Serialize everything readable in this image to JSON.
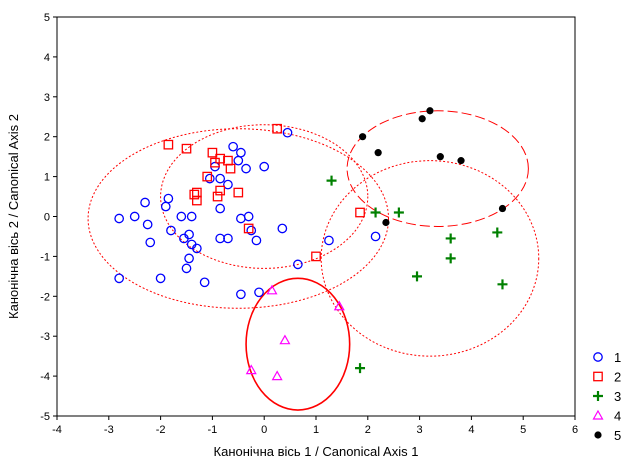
{
  "chart_data": {
    "type": "scatter",
    "xlabel": "Канонічна вісь 1 / Canonical Axis 1",
    "ylabel": "Канонічна вісь 2 / Canonical Axis 2",
    "xlim": [
      -4,
      6
    ],
    "ylim": [
      -5,
      5
    ],
    "xticks": [
      "-4",
      "-3",
      "-2",
      "-1",
      "0",
      "1",
      "2",
      "3",
      "4",
      "5",
      "6"
    ],
    "yticks": [
      "-5",
      "-4",
      "-3",
      "-2",
      "-1",
      "0",
      "1",
      "2",
      "3",
      "4",
      "5"
    ],
    "grid": false,
    "legend_position": "bottom-right",
    "series": [
      {
        "name": "1",
        "marker": "circle",
        "color": "#0000ff",
        "points": [
          [
            -2.8,
            -0.05
          ],
          [
            -2.8,
            -1.55
          ],
          [
            -2.5,
            0.0
          ],
          [
            -2.3,
            0.35
          ],
          [
            -2.25,
            -0.2
          ],
          [
            -2.2,
            -0.65
          ],
          [
            -2.0,
            -1.55
          ],
          [
            -1.9,
            0.25
          ],
          [
            -1.85,
            0.45
          ],
          [
            -1.8,
            -0.35
          ],
          [
            -1.6,
            0.0
          ],
          [
            -1.55,
            -0.55
          ],
          [
            -1.5,
            -1.3
          ],
          [
            -1.45,
            -1.05
          ],
          [
            -1.45,
            -0.45
          ],
          [
            -1.4,
            0.0
          ],
          [
            -1.4,
            -0.7
          ],
          [
            -1.3,
            -0.8
          ],
          [
            -1.15,
            -1.65
          ],
          [
            -1.05,
            0.95
          ],
          [
            -0.95,
            1.25
          ],
          [
            -0.85,
            0.2
          ],
          [
            -0.85,
            0.95
          ],
          [
            -0.85,
            -0.55
          ],
          [
            -0.7,
            0.8
          ],
          [
            -0.7,
            -0.55
          ],
          [
            -0.6,
            1.75
          ],
          [
            -0.5,
            1.4
          ],
          [
            -0.45,
            1.6
          ],
          [
            -0.45,
            -0.05
          ],
          [
            -0.45,
            -1.95
          ],
          [
            -0.35,
            1.2
          ],
          [
            -0.3,
            0.0
          ],
          [
            -0.25,
            -0.35
          ],
          [
            -0.15,
            -0.6
          ],
          [
            0.0,
            1.25
          ],
          [
            0.35,
            -0.3
          ],
          [
            0.45,
            2.1
          ],
          [
            0.65,
            -1.2
          ],
          [
            1.25,
            -0.6
          ],
          [
            2.15,
            -0.5
          ],
          [
            -0.1,
            -1.9
          ]
        ]
      },
      {
        "name": "2",
        "marker": "square",
        "color": "#ff0000",
        "points": [
          [
            -1.85,
            1.8
          ],
          [
            -1.5,
            1.7
          ],
          [
            -1.35,
            0.55
          ],
          [
            -1.3,
            0.4
          ],
          [
            -1.3,
            0.6
          ],
          [
            -1.1,
            1.0
          ],
          [
            -1.0,
            1.6
          ],
          [
            -0.95,
            1.35
          ],
          [
            -0.9,
            0.5
          ],
          [
            -0.85,
            1.45
          ],
          [
            -0.85,
            0.65
          ],
          [
            -0.7,
            1.4
          ],
          [
            -0.65,
            1.2
          ],
          [
            -0.5,
            0.6
          ],
          [
            -0.3,
            -0.3
          ],
          [
            0.25,
            2.2
          ],
          [
            1.0,
            -1.0
          ],
          [
            1.85,
            0.1
          ]
        ]
      },
      {
        "name": "3",
        "marker": "plus",
        "color": "#008000",
        "points": [
          [
            1.3,
            0.9
          ],
          [
            2.15,
            0.1
          ],
          [
            2.6,
            0.1
          ],
          [
            2.95,
            -1.5
          ],
          [
            3.6,
            -0.55
          ],
          [
            3.6,
            -1.05
          ],
          [
            4.5,
            -0.4
          ],
          [
            4.6,
            -1.7
          ],
          [
            1.85,
            -3.8
          ]
        ]
      },
      {
        "name": "4",
        "marker": "triangle",
        "color": "#ff00ff",
        "points": [
          [
            -0.25,
            -3.85
          ],
          [
            0.15,
            -1.85
          ],
          [
            0.25,
            -4.0
          ],
          [
            0.4,
            -3.1
          ],
          [
            1.45,
            -2.25
          ]
        ]
      },
      {
        "name": "5",
        "marker": "dot",
        "color": "#000000",
        "points": [
          [
            1.9,
            2.0
          ],
          [
            2.2,
            1.6
          ],
          [
            2.35,
            -0.15
          ],
          [
            3.05,
            2.45
          ],
          [
            3.2,
            2.65
          ],
          [
            3.4,
            1.5
          ],
          [
            3.8,
            1.4
          ],
          [
            4.6,
            0.2
          ]
        ]
      }
    ],
    "ellipses": [
      {
        "series": "1",
        "cx": -0.5,
        "cy": -0.05,
        "rx": 2.9,
        "ry": 2.25,
        "style": "dotted",
        "color": "#ff0000"
      },
      {
        "series": "2",
        "cx": 0.0,
        "cy": 0.5,
        "rx": 2.0,
        "ry": 1.8,
        "style": "dotted",
        "color": "#ff0000"
      },
      {
        "series": "3",
        "cx": 3.2,
        "cy": -1.05,
        "rx": 2.1,
        "ry": 2.45,
        "style": "dotted",
        "color": "#ff0000"
      },
      {
        "series": "4",
        "cx": 0.65,
        "cy": -3.2,
        "rx": 1.0,
        "ry": 1.65,
        "style": "solid",
        "color": "#ff0000"
      },
      {
        "series": "5",
        "cx": 3.35,
        "cy": 1.2,
        "rx": 1.75,
        "ry": 1.45,
        "style": "dashed",
        "color": "#ff0000"
      }
    ]
  }
}
